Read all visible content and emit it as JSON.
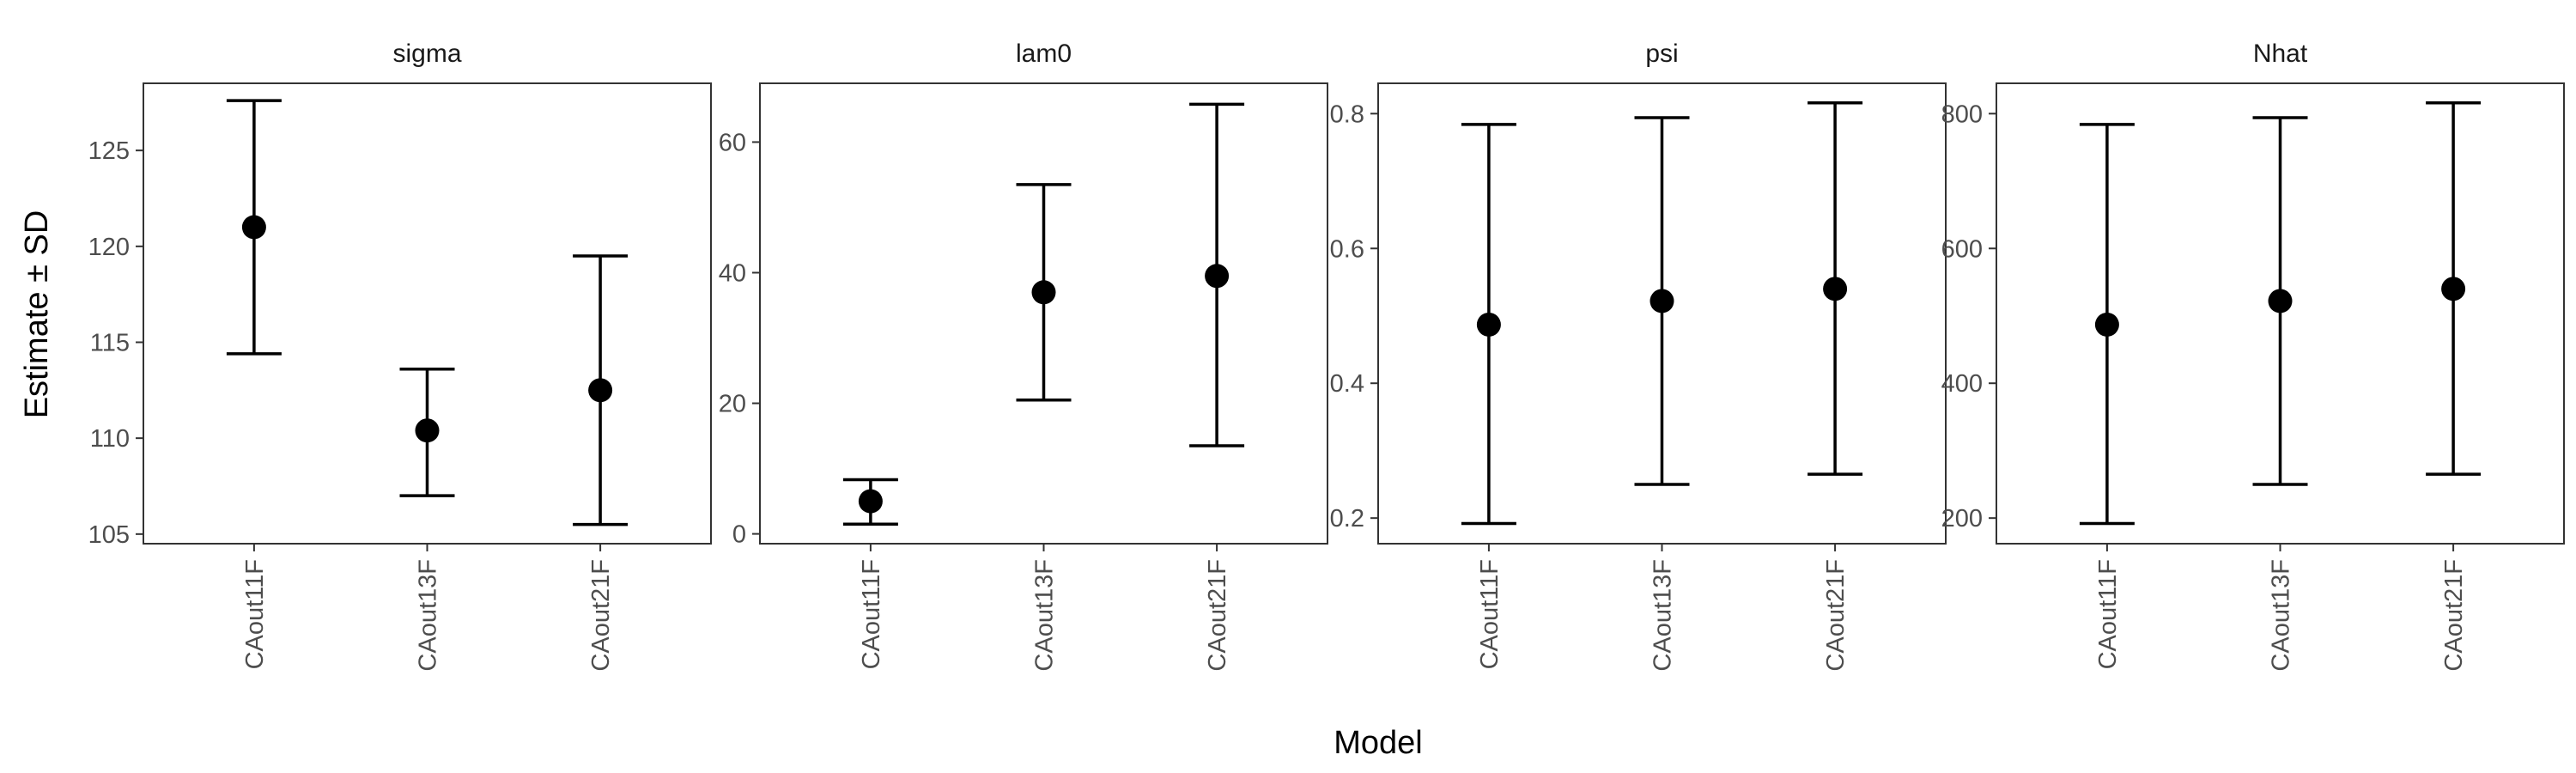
{
  "chart_data": {
    "type": "scatter",
    "xlabel": "Model",
    "ylabel": "Estimate ± SD",
    "grid": false,
    "categories": [
      "CAout11F",
      "CAout13F",
      "CAout21F"
    ],
    "panels": [
      {
        "title": "sigma",
        "ylim": [
          104.5,
          128.5
        ],
        "yticks": [
          105,
          110,
          115,
          120,
          125
        ],
        "points": [
          {
            "x": "CAout11F",
            "estimate": 121.0,
            "lower": 114.4,
            "upper": 127.6
          },
          {
            "x": "CAout13F",
            "estimate": 110.4,
            "lower": 107.0,
            "upper": 113.6
          },
          {
            "x": "CAout21F",
            "estimate": 112.5,
            "lower": 105.5,
            "upper": 119.5
          }
        ]
      },
      {
        "title": "lam0",
        "ylim": [
          -1.5,
          69
        ],
        "yticks": [
          0,
          20,
          40,
          60
        ],
        "points": [
          {
            "x": "CAout11F",
            "estimate": 5.0,
            "lower": 1.5,
            "upper": 8.3
          },
          {
            "x": "CAout13F",
            "estimate": 37.0,
            "lower": 20.5,
            "upper": 53.5
          },
          {
            "x": "CAout21F",
            "estimate": 39.5,
            "lower": 13.5,
            "upper": 65.8
          }
        ]
      },
      {
        "title": "psi",
        "ylim": [
          0.162,
          0.845
        ],
        "yticks": [
          0.2,
          0.4,
          0.6,
          0.8
        ],
        "yticklabels": [
          "0.2",
          "0.4",
          "0.6",
          "0.8"
        ],
        "points": [
          {
            "x": "CAout11F",
            "estimate": 0.487,
            "lower": 0.192,
            "upper": 0.784
          },
          {
            "x": "CAout13F",
            "estimate": 0.522,
            "lower": 0.25,
            "upper": 0.794
          },
          {
            "x": "CAout21F",
            "estimate": 0.54,
            "lower": 0.265,
            "upper": 0.816
          }
        ]
      },
      {
        "title": "Nhat",
        "ylim": [
          162,
          845
        ],
        "yticks": [
          200,
          400,
          600,
          800
        ],
        "points": [
          {
            "x": "CAout11F",
            "estimate": 487,
            "lower": 192,
            "upper": 784
          },
          {
            "x": "CAout13F",
            "estimate": 522,
            "lower": 250,
            "upper": 794
          },
          {
            "x": "CAout21F",
            "estimate": 540,
            "lower": 265,
            "upper": 816
          }
        ]
      }
    ]
  }
}
